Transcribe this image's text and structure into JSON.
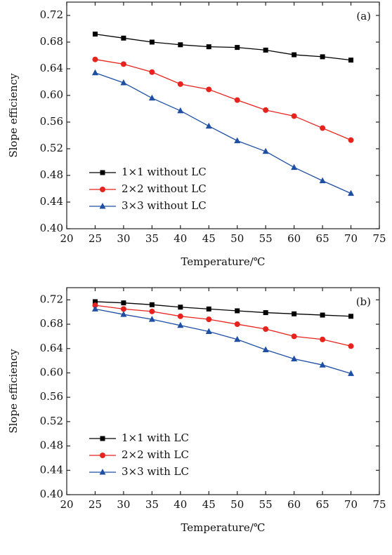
{
  "chart_data": [
    {
      "type": "line",
      "annotation": "(a)",
      "x_label": "Temperature/℃",
      "y_label": "Slope efficiency",
      "x": [
        25,
        30,
        35,
        40,
        45,
        50,
        55,
        60,
        65,
        70
      ],
      "xlim": [
        20,
        75
      ],
      "xticks": [
        20,
        25,
        30,
        35,
        40,
        45,
        50,
        55,
        60,
        65,
        70,
        75
      ],
      "ylim": [
        0.4,
        0.74
      ],
      "yticks": [
        {
          "value": 0.4,
          "label": "0.40"
        },
        {
          "value": 0.44,
          "label": "0.44"
        },
        {
          "value": 0.48,
          "label": "0.48"
        },
        {
          "value": 0.52,
          "label": "0.52"
        },
        {
          "value": 0.56,
          "label": "0.56"
        },
        {
          "value": 0.6,
          "label": "0.60"
        },
        {
          "value": 0.64,
          "label": "0.64"
        },
        {
          "value": 0.68,
          "label": "0.68"
        },
        {
          "value": 0.72,
          "label": "0.72"
        }
      ],
      "legend": "lower left",
      "series": [
        {
          "name": "1×1 without LC",
          "color": "#000000",
          "marker": "square",
          "values": [
            0.692,
            0.686,
            0.68,
            0.676,
            0.673,
            0.672,
            0.668,
            0.661,
            0.658,
            0.653
          ]
        },
        {
          "name": "2×2 without LC",
          "color": "#e8221c",
          "marker": "circle",
          "values": [
            0.654,
            0.647,
            0.635,
            0.617,
            0.609,
            0.593,
            0.578,
            0.569,
            0.551,
            0.533
          ]
        },
        {
          "name": "3×3 without LC",
          "color": "#1f4fa3",
          "marker": "triangle",
          "values": [
            0.634,
            0.619,
            0.596,
            0.577,
            0.554,
            0.532,
            0.516,
            0.492,
            0.472,
            0.453
          ]
        }
      ]
    },
    {
      "type": "line",
      "annotation": "(b)",
      "x_label": "Temperature/℃",
      "y_label": "Slope efficiency",
      "x": [
        25,
        30,
        35,
        40,
        45,
        50,
        55,
        60,
        65,
        70
      ],
      "xlim": [
        20,
        75
      ],
      "xticks": [
        20,
        25,
        30,
        35,
        40,
        45,
        50,
        55,
        60,
        65,
        70,
        75
      ],
      "ylim": [
        0.4,
        0.74
      ],
      "yticks": [
        {
          "value": 0.4,
          "label": "0.40"
        },
        {
          "value": 0.44,
          "label": "0.44"
        },
        {
          "value": 0.48,
          "label": "0.48"
        },
        {
          "value": 0.52,
          "label": "0.52"
        },
        {
          "value": 0.56,
          "label": "0.56"
        },
        {
          "value": 0.6,
          "label": "0.60"
        },
        {
          "value": 0.64,
          "label": "0.64"
        },
        {
          "value": 0.68,
          "label": "0.68"
        },
        {
          "value": 0.72,
          "label": "0.72"
        }
      ],
      "legend": "lower left",
      "series": [
        {
          "name": "1×1 with LC",
          "color": "#000000",
          "marker": "square",
          "values": [
            0.717,
            0.715,
            0.712,
            0.708,
            0.705,
            0.702,
            0.699,
            0.697,
            0.695,
            0.693
          ]
        },
        {
          "name": "2×2 with LC",
          "color": "#e8221c",
          "marker": "circle",
          "values": [
            0.711,
            0.705,
            0.701,
            0.693,
            0.688,
            0.68,
            0.672,
            0.66,
            0.655,
            0.644
          ]
        },
        {
          "name": "3×3 with LC",
          "color": "#1f4fa3",
          "marker": "triangle",
          "values": [
            0.705,
            0.696,
            0.688,
            0.678,
            0.668,
            0.655,
            0.638,
            0.623,
            0.613,
            0.599
          ]
        }
      ]
    }
  ]
}
